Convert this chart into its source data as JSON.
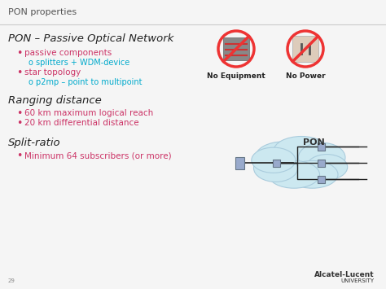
{
  "title": "PON properties",
  "heading1": "PON – Passive Optical Network",
  "bullet1a": "passive components",
  "sub1a": "o splitters + WDM-device",
  "bullet1b": "star topology",
  "sub1b": "o p2mp – point to multipoint",
  "heading2": "Ranging distance",
  "bullet2a": "60 km maximum logical reach",
  "bullet2b": "20 km differential distance",
  "heading3": "Split-ratio",
  "bullet3a": "Minimum 64 subscribers (or more)",
  "no_equip": "No Equipment",
  "no_power": "No Power",
  "pon_label": "PON",
  "brand": "Alcatel-Lucent",
  "brand_sub": "UNIVERSITY",
  "page_num": "29",
  "bg_color": "#f0f0f0",
  "title_color": "#555555",
  "heading_color": "#222222",
  "bullet_main_color": "#cc3366",
  "bullet_sub_color": "#00aacc",
  "cloud_color": "#cce8f0",
  "cloud_border": "#aaccdd",
  "node_color": "#99aacc",
  "line_color": "#222222",
  "no_sign_color": "#ee3333",
  "brand_color": "#333333"
}
